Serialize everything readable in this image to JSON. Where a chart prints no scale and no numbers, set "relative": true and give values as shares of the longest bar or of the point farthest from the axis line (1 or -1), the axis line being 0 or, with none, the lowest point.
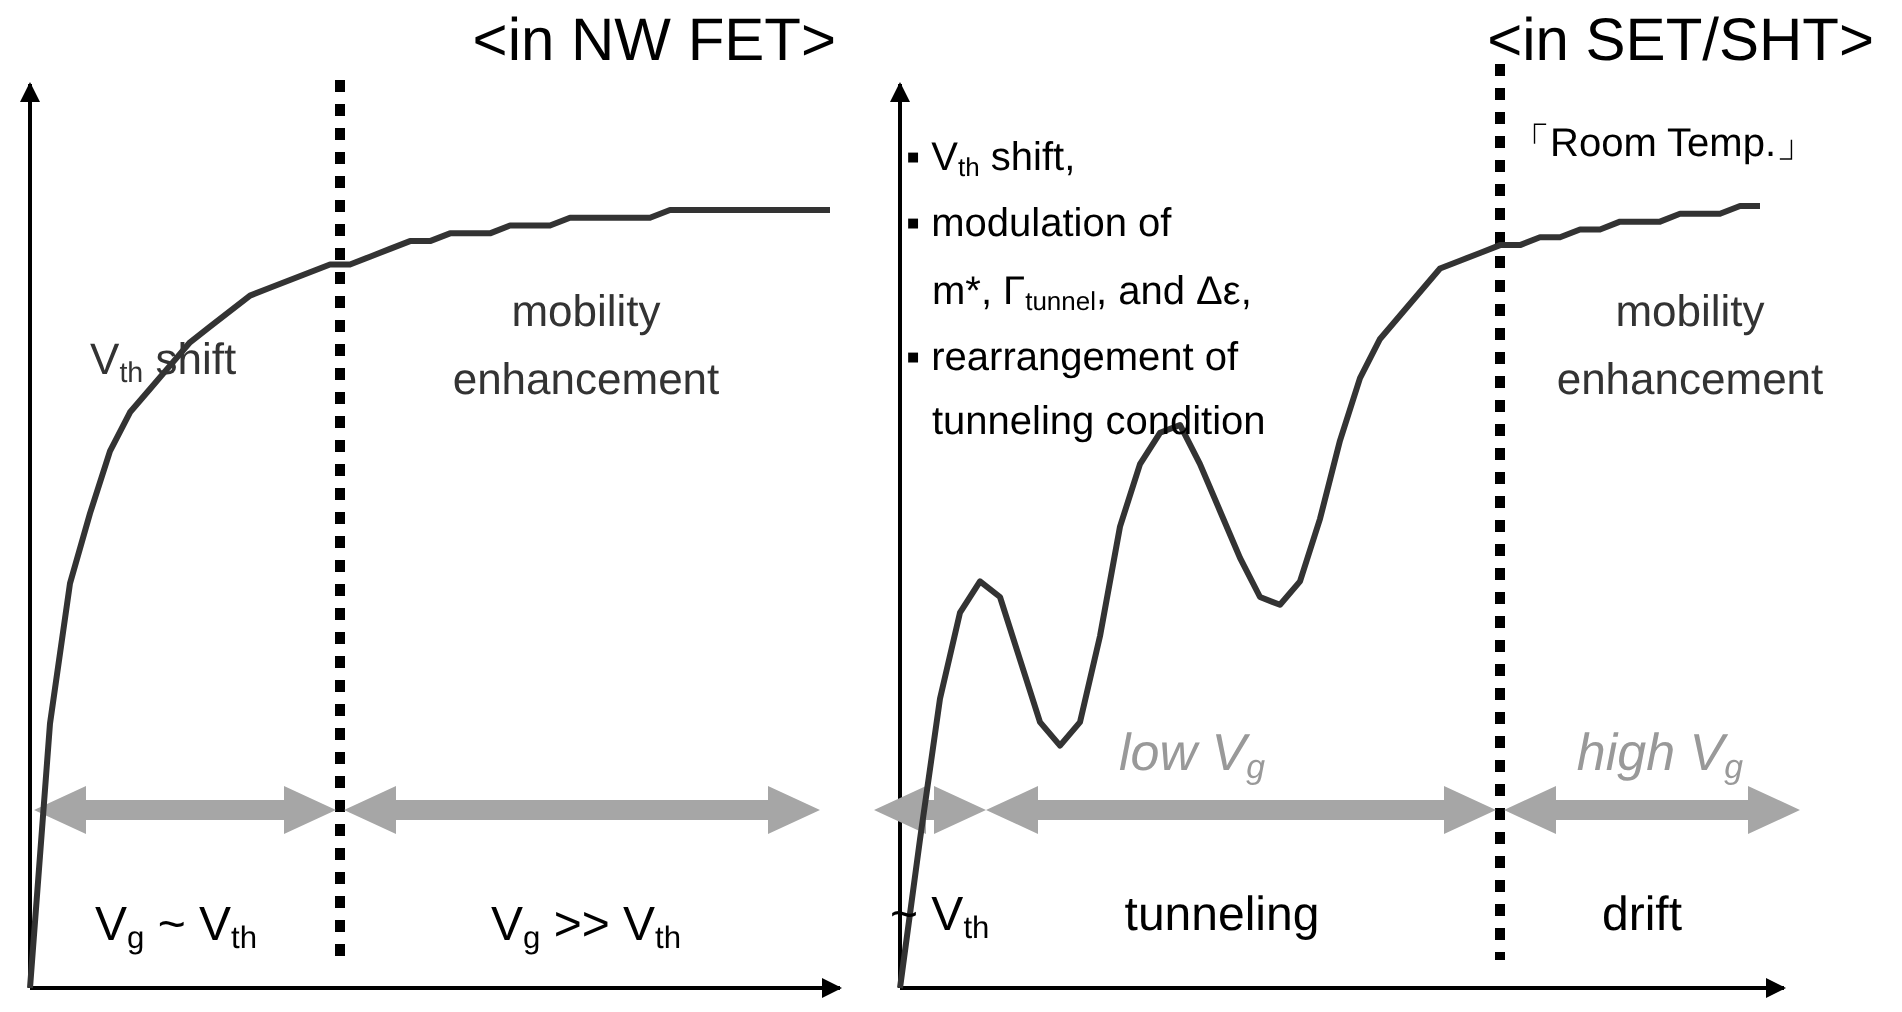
{
  "chart_data": [
    {
      "type": "line",
      "title": "<in NW FET>",
      "relative": true,
      "marker": "none",
      "line_style": "solid",
      "categories": [
        null,
        null,
        null,
        null,
        null,
        null,
        null,
        null,
        null,
        null,
        null,
        null,
        null,
        null,
        null,
        null,
        null,
        null,
        null,
        null,
        null,
        null,
        null,
        null,
        null,
        null,
        null,
        null,
        null,
        null,
        null,
        null,
        null,
        null,
        null,
        null,
        null,
        null,
        null,
        null,
        null
      ],
      "series": [
        {
          "color": "#333333",
          "values": [
            0,
            0.34,
            0.52,
            0.61,
            0.69,
            0.74,
            0.77,
            0.8,
            0.83,
            0.85,
            0.87,
            0.89,
            0.9,
            0.91,
            0.92,
            0.93,
            0.93,
            0.94,
            0.95,
            0.96,
            0.96,
            0.97,
            0.97,
            0.97,
            0.98,
            0.98,
            0.98,
            0.99,
            0.99,
            0.99,
            0.99,
            0.99,
            1,
            1,
            1,
            1,
            1,
            1,
            1,
            1,
            1
          ]
        }
      ],
      "annotations": [
        "V$_{th}$ shift",
        "mobility enhancement",
        "V$_{g}$ ~ V$_{th}$",
        "V$_{g}$ >> V$_{th}$"
      ]
    },
    {
      "type": "line",
      "title": "<in SET/SHT>",
      "relative": true,
      "marker": "none",
      "line_style": "solid",
      "categories": [
        null,
        null,
        null,
        null,
        null,
        null,
        null,
        null,
        null,
        null,
        null,
        null,
        null,
        null,
        null,
        null,
        null,
        null,
        null,
        null,
        null,
        null,
        null,
        null,
        null,
        null,
        null,
        null,
        null,
        null,
        null,
        null,
        null,
        null,
        null,
        null,
        null,
        null,
        null,
        null,
        null,
        null,
        null,
        null
      ],
      "series": [
        {
          "color": "#333333",
          "values": [
            0,
            0.19,
            0.37,
            0.48,
            0.52,
            0.5,
            0.42,
            0.34,
            0.31,
            0.34,
            0.45,
            0.59,
            0.67,
            0.71,
            0.72,
            0.67,
            0.61,
            0.55,
            0.5,
            0.49,
            0.52,
            0.6,
            0.7,
            0.78,
            0.83,
            0.86,
            0.89,
            0.92,
            0.93,
            0.94,
            0.95,
            0.95,
            0.96,
            0.96,
            0.97,
            0.97,
            0.98,
            0.98,
            0.98,
            0.99,
            0.99,
            0.99,
            1,
            1
          ]
        }
      ],
      "annotations": [
        "「Room Temp.」",
        "▪ V$_{th}$ shift,",
        "▪ modulation of",
        "m*, Γ$_{tunnel}$, and Δε,",
        "▪ rearrangement of",
        "tunneling condition",
        "mobility enhancement",
        "low V$_{g}$",
        "high V$_{g}$",
        "~ V$_{th}$",
        "tunneling",
        "drift"
      ]
    }
  ]
}
